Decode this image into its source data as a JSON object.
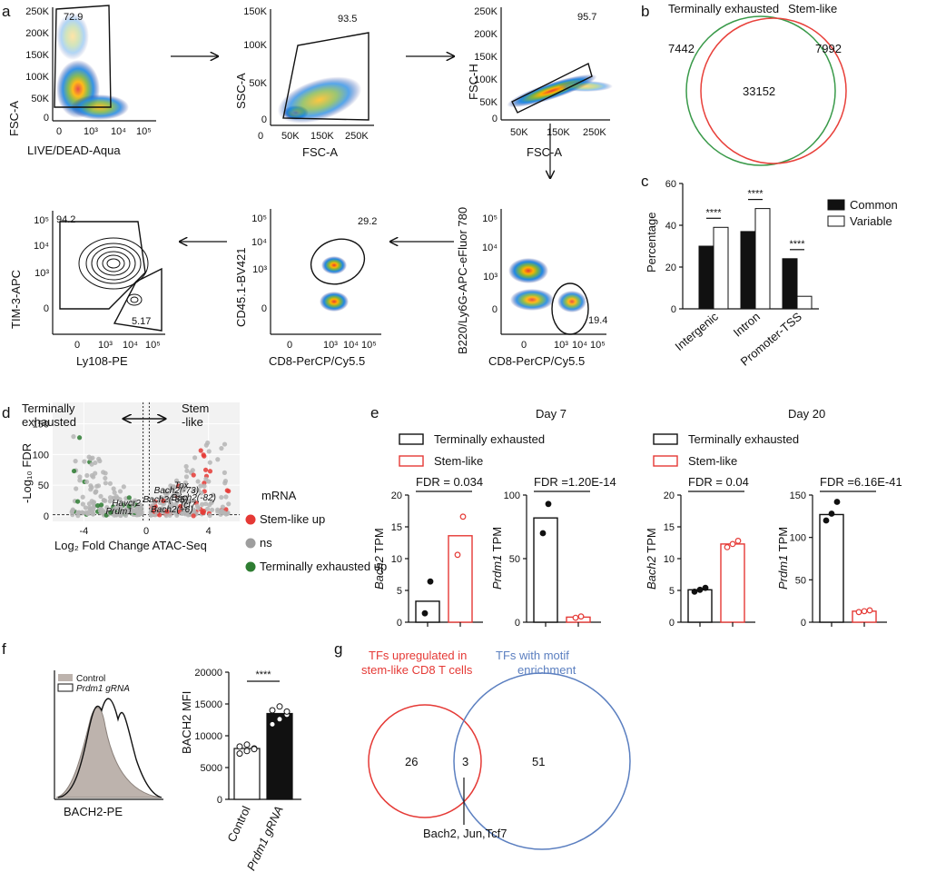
{
  "panel_labels": {
    "a": "a",
    "b": "b",
    "c": "c",
    "d": "d",
    "e": "e",
    "f": "f",
    "g": "g"
  },
  "panel_a": {
    "plots": [
      {
        "xlabel": "LIVE/DEAD-Aqua",
        "ylabel": "FSC-A",
        "gate_value": "72.9",
        "yticks": [
          "250K",
          "200K",
          "150K",
          "100K",
          "50K",
          "0"
        ],
        "xticks": [
          "0",
          "10³",
          "10⁴",
          "10⁵"
        ]
      },
      {
        "xlabel": "FSC-A",
        "ylabel": "SSC-A",
        "gate_value": "93.5",
        "yticks": [
          "150K",
          "100K",
          "50K",
          "0"
        ],
        "xticks": [
          "0",
          "50K",
          "150K",
          "250K"
        ]
      },
      {
        "xlabel": "FSC-A",
        "ylabel": "FSC-H",
        "gate_value": "95.7",
        "yticks": [
          "250K",
          "200K",
          "150K",
          "100K",
          "50K",
          "0"
        ],
        "xticks": [
          "50K",
          "150K",
          "250K"
        ]
      },
      {
        "xlabel": "CD8-PerCP/Cy5.5",
        "ylabel": "B220/Ly6G-APC-eFluor 780",
        "gate_value": "19.4",
        "yticks": [
          "10⁵",
          "10⁴",
          "10³",
          "0"
        ],
        "xticks": [
          "0",
          "10³",
          "10⁴",
          "10⁵"
        ]
      },
      {
        "xlabel": "CD8-PerCP/Cy5.5",
        "ylabel": "CD45.1-BV421",
        "gate_value": "29.2",
        "yticks": [
          "10⁵",
          "10⁴",
          "10³",
          "0"
        ],
        "xticks": [
          "0",
          "10³",
          "10⁴",
          "10⁵"
        ]
      },
      {
        "xlabel": "Ly108-PE",
        "ylabel": "TIM-3-APC",
        "gate_value_top": "94.2",
        "gate_value_bottom": "5.17",
        "yticks": [
          "10⁵",
          "10⁴",
          "10³",
          "0"
        ],
        "xticks": [
          "0",
          "10³",
          "10⁴",
          "10⁵"
        ]
      }
    ]
  },
  "panel_b": {
    "left_title": "Terminally exhausted",
    "right_title": "Stem-like",
    "left_only": "7442",
    "overlap": "33152",
    "right_only": "7992",
    "left_color": "#3a9a4a",
    "right_color": "#e8403a"
  },
  "chart_data": [
    {
      "type": "bar",
      "title": "c",
      "ylabel": "Percentage",
      "categories": [
        "Intergenic",
        "Intron",
        "Promoter-TSS"
      ],
      "series": [
        {
          "name": "Common",
          "values": [
            30,
            37,
            24
          ]
        },
        {
          "name": "Variable",
          "values": [
            39,
            48,
            6
          ]
        }
      ],
      "ylim": [
        0,
        60
      ],
      "yticks": [
        "0",
        "20",
        "40",
        "60"
      ],
      "significance": [
        "****",
        "****",
        "****"
      ]
    },
    {
      "type": "scatter",
      "title": "d",
      "xlabel": "Log₂ Fold Change ATAC-Seq",
      "ylabel": "-Log₁₀ FDR",
      "xlim": [
        -6,
        6
      ],
      "ylim": [
        0,
        170
      ],
      "xticks": [
        "-4",
        "0",
        "4"
      ],
      "yticks": [
        "0",
        "50",
        "100",
        "150"
      ],
      "direction_left": "Terminally exhausted",
      "direction_right": "Stem-like",
      "legend_title": "mRNA",
      "legend": [
        {
          "label": "Stem-like up",
          "color": "#e53935"
        },
        {
          "label": "ns",
          "color": "#9e9e9e"
        },
        {
          "label": "Terminally exhausted up",
          "color": "#2e7d32"
        }
      ],
      "annotations": [
        {
          "label": "Tox",
          "x": 1.8,
          "y": 45
        },
        {
          "label": "Bach2(-73)",
          "x": 0.5,
          "y": 37
        },
        {
          "label": "Bach2(-66)",
          "x": -0.2,
          "y": 22
        },
        {
          "label": "Bach2(-82)",
          "x": 1.6,
          "y": 25
        },
        {
          "label": "Havcr2",
          "x": -2.2,
          "y": 16
        },
        {
          "label": "Tcf7",
          "x": 2.1,
          "y": 13
        },
        {
          "label": "Bach2(+6)",
          "x": 0.3,
          "y": 6
        },
        {
          "label": "Prdm1",
          "x": -2.6,
          "y": 3
        }
      ]
    },
    {
      "type": "bar",
      "title": "e",
      "legend": [
        {
          "label": "Terminally exhausted",
          "color": "#111111"
        },
        {
          "label": "Stem-like",
          "color": "#e53935"
        }
      ],
      "panels": [
        {
          "day": "Day 7",
          "gene": "Bach2",
          "ylabel": "TPM",
          "fdr": "FDR = 0.034",
          "ylim": [
            0,
            20
          ],
          "yticks": [
            "0",
            "5",
            "10",
            "15",
            "20"
          ],
          "values": [
            3.3,
            13.6
          ],
          "points": [
            [
              1.4,
              6.4
            ],
            [
              10.6,
              16.6
            ]
          ]
        },
        {
          "day": "Day 7",
          "gene": "Prdm1",
          "ylabel": "TPM",
          "fdr": "FDR =1.20E-14",
          "ylim": [
            0,
            100
          ],
          "yticks": [
            "0",
            "50",
            "100"
          ],
          "values": [
            82,
            4
          ],
          "points": [
            [
              70,
              93
            ],
            [
              3.5,
              4.5
            ]
          ]
        },
        {
          "day": "Day 20",
          "gene": "Bach2",
          "ylabel": "TPM",
          "fdr": "FDR = 0.04",
          "ylim": [
            0,
            20
          ],
          "yticks": [
            "0",
            "5",
            "10",
            "15",
            "20"
          ],
          "values": [
            5.1,
            12.3
          ],
          "points": [
            [
              4.8,
              5.1,
              5.4
            ],
            [
              11.8,
              12.3,
              12.8
            ]
          ]
        },
        {
          "day": "Day 20",
          "gene": "Prdm1",
          "ylabel": "TPM",
          "fdr": "FDR =6.16E-41",
          "ylim": [
            0,
            150
          ],
          "yticks": [
            "0",
            "50",
            "100",
            "150"
          ],
          "values": [
            127,
            13
          ],
          "points": [
            [
              120,
              128,
              142
            ],
            [
              12,
              13,
              14
            ]
          ]
        }
      ]
    },
    {
      "type": "bar",
      "title": "f",
      "ylabel": "BACH2 MFI",
      "categories": [
        "Control",
        "Prdm1 gRNA"
      ],
      "values": [
        8000,
        13500
      ],
      "points": [
        [
          7200,
          7600,
          8000,
          8300,
          8600,
          7900
        ],
        [
          11800,
          12600,
          13300,
          14000,
          14600,
          13800
        ]
      ],
      "ylim": [
        0,
        20000
      ],
      "yticks": [
        "0",
        "5000",
        "10000",
        "15000",
        "20000"
      ],
      "significance": "****",
      "histogram_xlabel": "BACH2-PE",
      "histogram_legend": [
        {
          "label": "Control"
        },
        {
          "label": "Prdm1 gRNA"
        }
      ]
    }
  ],
  "panel_g": {
    "left_title_line1": "TFs upregulated in",
    "left_title_line2": "stem-like CD8 T cells",
    "right_title_line1": "TFs with motif",
    "right_title_line2": "enrichment",
    "left_only": "26",
    "overlap": "3",
    "right_only": "51",
    "overlap_genes": "Bach2, Jun,Tcf7",
    "left_color": "#e53935",
    "right_color": "#5b7fc0"
  }
}
